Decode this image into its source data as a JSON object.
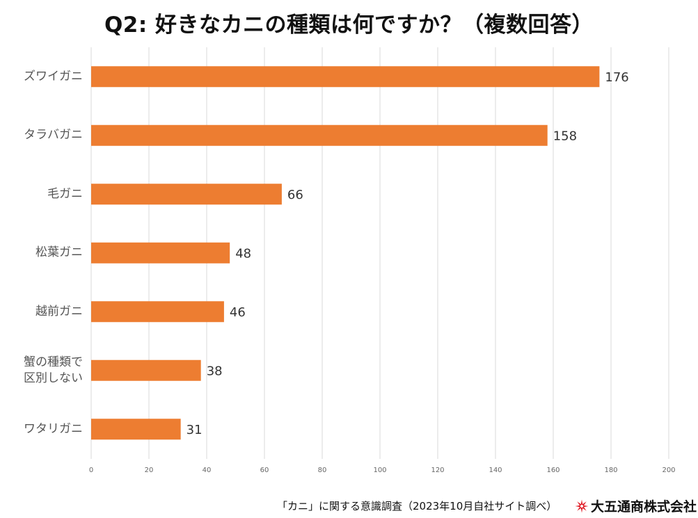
{
  "chart_data": {
    "type": "bar",
    "orientation": "horizontal",
    "title": "Q2: 好きなカニの種類は何ですか？（複数回答）",
    "categories": [
      "ズワイガニ",
      "タラバガニ",
      "毛ガニ",
      "松葉ガニ",
      "越前ガニ",
      "蟹の種類で区別しない",
      "ワタリガニ"
    ],
    "category_lines": [
      [
        "ズワイガニ"
      ],
      [
        "タラバガニ"
      ],
      [
        "毛ガニ"
      ],
      [
        "松葉ガニ"
      ],
      [
        "越前ガニ"
      ],
      [
        "蟹の種類で",
        "区別しない"
      ],
      [
        "ワタリガニ"
      ]
    ],
    "values": [
      176,
      158,
      66,
      48,
      46,
      38,
      31
    ],
    "xlim": [
      0,
      200
    ],
    "xticks": [
      0,
      20,
      40,
      60,
      80,
      100,
      120,
      140,
      160,
      180,
      200
    ],
    "xlabel": "",
    "ylabel": "",
    "grid": true,
    "bar_color": "#ED7D31",
    "grid_color": "#D9D9D9"
  },
  "footer": {
    "source": "「カニ」に関する意識調査（2023年10月自社サイト調べ）",
    "company": "大五通商株式会社",
    "logo_color": "#E0202A"
  }
}
